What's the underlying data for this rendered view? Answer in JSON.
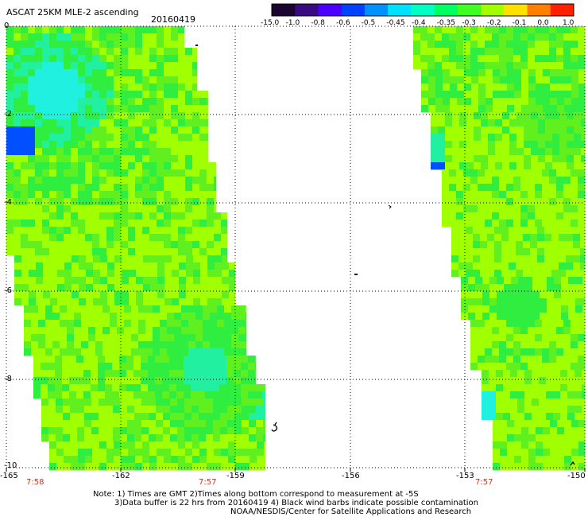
{
  "header": {
    "title": "ASCAT 25KM MLE-2 ascending",
    "date": "20160419"
  },
  "colorbar": {
    "labels": [
      "-15.0",
      "-1.0",
      "-0.8",
      "-0.6",
      "-0.5",
      "-0.45",
      "-0.4",
      "-0.35",
      "-0.3",
      "-0.2",
      "-0.1",
      "0.0",
      "1.0"
    ],
    "colors": [
      "#1a0630",
      "#3a0a80",
      "#4b00ff",
      "#0040ff",
      "#0090ff",
      "#00e0ff",
      "#00ffc0",
      "#00ff60",
      "#40ff20",
      "#a0ff00",
      "#ffe000",
      "#ff8000",
      "#ff2000"
    ]
  },
  "axes": {
    "lat_labels": [
      "0",
      "-2",
      "-4",
      "-6",
      "-8",
      "-10"
    ],
    "lon_labels": [
      "-165",
      "-162",
      "-159",
      "-156",
      "-153",
      "-150"
    ],
    "time_labels": [
      "7:58",
      "7:57",
      "7:57"
    ]
  },
  "swath_colors": {
    "base": "#a0ff00",
    "mid": "#60f020",
    "green": "#30ee40",
    "teal": "#20f0a0",
    "cyan": "#20f0e0",
    "blue": "#0050ff",
    "deep": "#2020d0"
  },
  "notes": {
    "line1": "Note: 1) Times are GMT 2)Times along bottom correspond to measurement at -5S",
    "line2": "3)Data buffer is 22 hrs from 20160419 4) Black wind barbs indicate possible contamination",
    "line3": "NOAA/NESDIS/Center for Satellite Applications and Research"
  }
}
